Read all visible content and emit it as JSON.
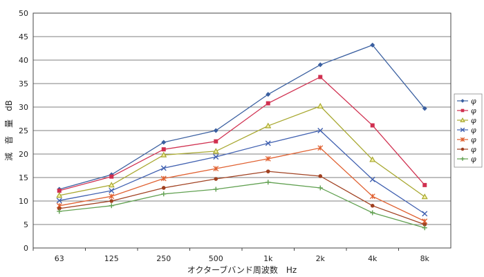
{
  "chart_data": {
    "type": "line",
    "xlabel": "オクターブバンド周波数　Hz",
    "ylabel": "減　音　量　dB",
    "categories": [
      "63",
      "125",
      "250",
      "500",
      "1k",
      "2k",
      "4k",
      "8k"
    ],
    "ylim": [
      0,
      50
    ],
    "yticks": [
      0,
      5,
      10,
      15,
      20,
      25,
      30,
      35,
      40,
      45,
      50
    ],
    "grid": true,
    "legend_position": "right",
    "series": [
      {
        "name": "φ",
        "color": "#3a5fa0",
        "marker": "diamond",
        "values": [
          12.5,
          15.6,
          22.5,
          25.0,
          32.7,
          39.0,
          43.2,
          29.7
        ]
      },
      {
        "name": "φ",
        "color": "#d03050",
        "marker": "square",
        "values": [
          12.2,
          15.2,
          21.0,
          22.7,
          30.8,
          36.4,
          26.1,
          13.4
        ]
      },
      {
        "name": "φ",
        "color": "#a8a830",
        "marker": "triangle",
        "values": [
          11.2,
          13.4,
          19.8,
          20.6,
          26.0,
          30.2,
          18.8,
          10.9
        ]
      },
      {
        "name": "φ",
        "color": "#4060b0",
        "marker": "x",
        "values": [
          10.1,
          12.2,
          17.0,
          19.4,
          22.3,
          25.0,
          14.6,
          7.3
        ]
      },
      {
        "name": "φ",
        "color": "#e06030",
        "marker": "star",
        "values": [
          9.0,
          11.0,
          14.8,
          16.9,
          19.0,
          21.3,
          11.0,
          5.7
        ]
      },
      {
        "name": "φ",
        "color": "#a04020",
        "marker": "circle",
        "values": [
          8.4,
          10.0,
          12.8,
          14.7,
          16.3,
          15.3,
          9.0,
          5.0
        ]
      },
      {
        "name": "φ",
        "color": "#60a050",
        "marker": "plus",
        "values": [
          7.8,
          9.0,
          11.5,
          12.5,
          14.0,
          12.8,
          7.5,
          4.3
        ]
      }
    ]
  }
}
